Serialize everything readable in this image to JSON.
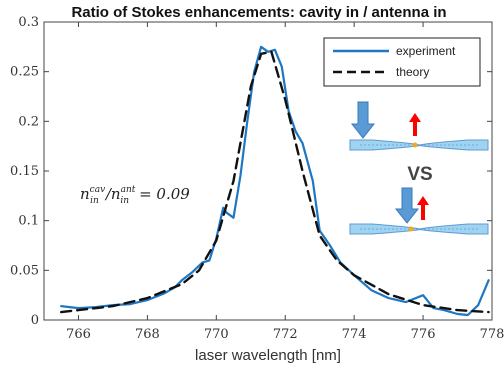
{
  "chart_data": {
    "type": "line",
    "title": "Ratio of Stokes enhancements: cavity in / antenna in",
    "xlabel": "laser wavelength [nm]",
    "ylabel": "",
    "xlim": [
      765,
      778
    ],
    "ylim": [
      0,
      0.3
    ],
    "xticks": [
      "766",
      "768",
      "770",
      "772",
      "774",
      "776",
      "778"
    ],
    "yticks": [
      "0",
      "0.05",
      "0.1",
      "0.15",
      "0.2",
      "0.25",
      "0.3"
    ],
    "grid": false,
    "legend_position": "top-right",
    "series": [
      {
        "name": "experiment",
        "color": "#1f77c4",
        "x": [
          765.5,
          766.0,
          766.5,
          767.0,
          767.5,
          768.0,
          768.5,
          768.8,
          769.0,
          769.3,
          769.6,
          769.8,
          770.0,
          770.2,
          770.3,
          770.5,
          770.7,
          770.9,
          771.1,
          771.3,
          771.5,
          771.7,
          771.9,
          772.1,
          772.3,
          772.5,
          772.8,
          773.0,
          773.3,
          773.6,
          774.0,
          774.5,
          775.0,
          775.5,
          776.0,
          776.3,
          776.6,
          777.0,
          777.3,
          777.6,
          777.9
        ],
        "y": [
          0.014,
          0.012,
          0.013,
          0.015,
          0.016,
          0.02,
          0.027,
          0.033,
          0.04,
          0.048,
          0.058,
          0.06,
          0.082,
          0.113,
          0.108,
          0.103,
          0.145,
          0.2,
          0.25,
          0.275,
          0.27,
          0.272,
          0.255,
          0.21,
          0.19,
          0.178,
          0.14,
          0.09,
          0.075,
          0.058,
          0.045,
          0.03,
          0.022,
          0.018,
          0.025,
          0.012,
          0.01,
          0.006,
          0.005,
          0.015,
          0.04
        ]
      },
      {
        "name": "theory",
        "color": "#111111",
        "x": [
          765.5,
          766.0,
          767.0,
          768.0,
          769.0,
          769.5,
          770.0,
          770.5,
          771.0,
          771.3,
          771.6,
          772.0,
          772.5,
          773.0,
          773.5,
          774.0,
          775.0,
          776.0,
          777.0,
          777.9
        ],
        "y": [
          0.008,
          0.01,
          0.014,
          0.022,
          0.036,
          0.05,
          0.08,
          0.14,
          0.235,
          0.268,
          0.27,
          0.222,
          0.15,
          0.085,
          0.06,
          0.045,
          0.026,
          0.015,
          0.01,
          0.008
        ]
      }
    ]
  },
  "annotations": {
    "ratio_label": {
      "n": "n",
      "cav": "cav",
      "in1": "in",
      "slash": "/",
      "ant": "ant",
      "in2": "in",
      "eq": "= 0.09"
    },
    "vs": "VS",
    "colors": {
      "panel_blue": "#5b9bd5",
      "beam_fill": "#9fd3f0",
      "red_arrow": "#ff0000",
      "orange_dot": "#f4a81c"
    }
  }
}
